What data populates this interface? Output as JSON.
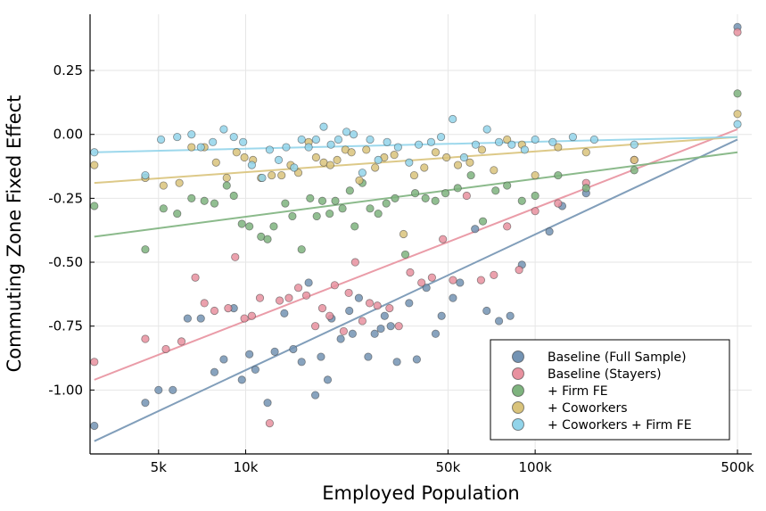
{
  "chart_data": {
    "type": "scatter",
    "title": "",
    "xlabel": "Employed Population",
    "ylabel": "Commuting Zone Fixed Effect",
    "x_scale": "log10",
    "xlim": [
      2900,
      560000
    ],
    "ylim": [
      -1.25,
      0.47
    ],
    "x_ticks": [
      {
        "value": 5000,
        "label": "5k"
      },
      {
        "value": 10000,
        "label": "10k"
      },
      {
        "value": 50000,
        "label": "50k"
      },
      {
        "value": 100000,
        "label": "100k"
      },
      {
        "value": 500000,
        "label": "500k"
      }
    ],
    "y_ticks": [
      {
        "value": 0.25,
        "label": "0.25"
      },
      {
        "value": 0.0,
        "label": "0.00"
      },
      {
        "value": -0.25,
        "label": "-0.25"
      },
      {
        "value": -0.5,
        "label": "-0.50"
      },
      {
        "value": -0.75,
        "label": "-0.75"
      },
      {
        "value": -1.0,
        "label": "-1.00"
      }
    ],
    "grid": true,
    "legend_position": "bottom-right",
    "series": [
      {
        "name": "Baseline (Full Sample)",
        "color": "#7393b3",
        "fit": [
          [
            3000,
            -1.2
          ],
          [
            500000,
            -0.02
          ]
        ],
        "points": [
          [
            3000,
            -1.14
          ],
          [
            4500,
            -1.05
          ],
          [
            5000,
            -1.0
          ],
          [
            5600,
            -1.0
          ],
          [
            6300,
            -0.72
          ],
          [
            7000,
            -0.72
          ],
          [
            7800,
            -0.93
          ],
          [
            8400,
            -0.88
          ],
          [
            9100,
            -0.68
          ],
          [
            9700,
            -0.96
          ],
          [
            10300,
            -0.86
          ],
          [
            10800,
            -0.92
          ],
          [
            11900,
            -1.05
          ],
          [
            12600,
            -0.85
          ],
          [
            13600,
            -0.7
          ],
          [
            14600,
            -0.84
          ],
          [
            15600,
            -0.89
          ],
          [
            16500,
            -0.58
          ],
          [
            17400,
            -1.02
          ],
          [
            18200,
            -0.87
          ],
          [
            19200,
            -0.96
          ],
          [
            19800,
            -0.72
          ],
          [
            21300,
            -0.8
          ],
          [
            22800,
            -0.69
          ],
          [
            23400,
            -0.78
          ],
          [
            24600,
            -0.64
          ],
          [
            26500,
            -0.87
          ],
          [
            27900,
            -0.78
          ],
          [
            29300,
            -0.76
          ],
          [
            30200,
            -0.71
          ],
          [
            31700,
            -0.75
          ],
          [
            33300,
            -0.89
          ],
          [
            36700,
            -0.66
          ],
          [
            39000,
            -0.88
          ],
          [
            42100,
            -0.6
          ],
          [
            45300,
            -0.78
          ],
          [
            47500,
            -0.71
          ],
          [
            52000,
            -0.64
          ],
          [
            55000,
            -0.58
          ],
          [
            62000,
            -0.37
          ],
          [
            68000,
            -0.69
          ],
          [
            75000,
            -0.73
          ],
          [
            82000,
            -0.71
          ],
          [
            90000,
            -0.51
          ],
          [
            112000,
            -0.38
          ],
          [
            124000,
            -0.28
          ],
          [
            150000,
            -0.23
          ],
          [
            500000,
            0.42
          ]
        ]
      },
      {
        "name": "Baseline (Stayers)",
        "color": "#e8919f",
        "fit": [
          [
            3000,
            -0.96
          ],
          [
            500000,
            0.02
          ]
        ],
        "points": [
          [
            3000,
            -0.89
          ],
          [
            4500,
            -0.8
          ],
          [
            5300,
            -0.84
          ],
          [
            6000,
            -0.81
          ],
          [
            6700,
            -0.56
          ],
          [
            7200,
            -0.66
          ],
          [
            7800,
            -0.69
          ],
          [
            8700,
            -0.68
          ],
          [
            9200,
            -0.48
          ],
          [
            9900,
            -0.72
          ],
          [
            10500,
            -0.71
          ],
          [
            11200,
            -0.64
          ],
          [
            12100,
            -1.13
          ],
          [
            13100,
            -0.65
          ],
          [
            14100,
            -0.64
          ],
          [
            15200,
            -0.6
          ],
          [
            16200,
            -0.63
          ],
          [
            17400,
            -0.75
          ],
          [
            18400,
            -0.68
          ],
          [
            19500,
            -0.71
          ],
          [
            20300,
            -0.59
          ],
          [
            21800,
            -0.77
          ],
          [
            22700,
            -0.62
          ],
          [
            23900,
            -0.5
          ],
          [
            25300,
            -0.73
          ],
          [
            26800,
            -0.66
          ],
          [
            28500,
            -0.67
          ],
          [
            31400,
            -0.68
          ],
          [
            33800,
            -0.75
          ],
          [
            37000,
            -0.54
          ],
          [
            40500,
            -0.58
          ],
          [
            44000,
            -0.56
          ],
          [
            48000,
            -0.41
          ],
          [
            52000,
            -0.57
          ],
          [
            58000,
            -0.24
          ],
          [
            65000,
            -0.57
          ],
          [
            72000,
            -0.55
          ],
          [
            80000,
            -0.36
          ],
          [
            88000,
            -0.53
          ],
          [
            100000,
            -0.3
          ],
          [
            120000,
            -0.27
          ],
          [
            150000,
            -0.19
          ],
          [
            220000,
            -0.1
          ],
          [
            500000,
            0.4
          ]
        ]
      },
      {
        "name": "+ Firm FE",
        "color": "#7eb37e",
        "fit": [
          [
            3000,
            -0.4
          ],
          [
            500000,
            -0.07
          ]
        ],
        "points": [
          [
            3000,
            -0.28
          ],
          [
            4500,
            -0.45
          ],
          [
            5200,
            -0.29
          ],
          [
            5800,
            -0.31
          ],
          [
            6500,
            -0.25
          ],
          [
            7200,
            -0.26
          ],
          [
            7800,
            -0.27
          ],
          [
            8600,
            -0.2
          ],
          [
            9100,
            -0.24
          ],
          [
            9700,
            -0.35
          ],
          [
            10300,
            -0.36
          ],
          [
            11300,
            -0.4
          ],
          [
            11900,
            -0.41
          ],
          [
            12500,
            -0.36
          ],
          [
            13700,
            -0.27
          ],
          [
            14500,
            -0.32
          ],
          [
            15600,
            -0.45
          ],
          [
            16700,
            -0.25
          ],
          [
            17600,
            -0.32
          ],
          [
            18400,
            -0.26
          ],
          [
            19500,
            -0.31
          ],
          [
            20400,
            -0.26
          ],
          [
            21600,
            -0.29
          ],
          [
            22900,
            -0.22
          ],
          [
            23800,
            -0.36
          ],
          [
            25300,
            -0.19
          ],
          [
            26900,
            -0.29
          ],
          [
            28700,
            -0.31
          ],
          [
            30600,
            -0.27
          ],
          [
            32800,
            -0.25
          ],
          [
            35600,
            -0.47
          ],
          [
            38500,
            -0.23
          ],
          [
            41800,
            -0.25
          ],
          [
            45200,
            -0.26
          ],
          [
            49000,
            -0.23
          ],
          [
            54000,
            -0.21
          ],
          [
            60000,
            -0.16
          ],
          [
            66000,
            -0.34
          ],
          [
            73000,
            -0.22
          ],
          [
            80000,
            -0.2
          ],
          [
            90000,
            -0.26
          ],
          [
            100000,
            -0.24
          ],
          [
            120000,
            -0.16
          ],
          [
            150000,
            -0.21
          ],
          [
            220000,
            -0.14
          ],
          [
            500000,
            0.16
          ]
        ]
      },
      {
        "name": "+ Coworkers",
        "color": "#d9c37b",
        "fit": [
          [
            3000,
            -0.19
          ],
          [
            500000,
            -0.01
          ]
        ],
        "points": [
          [
            3000,
            -0.12
          ],
          [
            4500,
            -0.17
          ],
          [
            5200,
            -0.2
          ],
          [
            5900,
            -0.19
          ],
          [
            6500,
            -0.05
          ],
          [
            7200,
            -0.05
          ],
          [
            7900,
            -0.11
          ],
          [
            8600,
            -0.17
          ],
          [
            9300,
            -0.07
          ],
          [
            9900,
            -0.09
          ],
          [
            10600,
            -0.1
          ],
          [
            11300,
            -0.17
          ],
          [
            12300,
            -0.16
          ],
          [
            13300,
            -0.16
          ],
          [
            14300,
            -0.12
          ],
          [
            15200,
            -0.15
          ],
          [
            16500,
            -0.03
          ],
          [
            17500,
            -0.09
          ],
          [
            18600,
            -0.11
          ],
          [
            19600,
            -0.12
          ],
          [
            20700,
            -0.1
          ],
          [
            22100,
            -0.06
          ],
          [
            23200,
            -0.07
          ],
          [
            24700,
            -0.18
          ],
          [
            26100,
            -0.06
          ],
          [
            28000,
            -0.13
          ],
          [
            30100,
            -0.09
          ],
          [
            32600,
            -0.08
          ],
          [
            35100,
            -0.39
          ],
          [
            38200,
            -0.16
          ],
          [
            41400,
            -0.13
          ],
          [
            45300,
            -0.07
          ],
          [
            49400,
            -0.09
          ],
          [
            54100,
            -0.12
          ],
          [
            59500,
            -0.11
          ],
          [
            65500,
            -0.06
          ],
          [
            72000,
            -0.14
          ],
          [
            80000,
            -0.02
          ],
          [
            90000,
            -0.04
          ],
          [
            100000,
            -0.16
          ],
          [
            120000,
            -0.05
          ],
          [
            150000,
            -0.07
          ],
          [
            220000,
            -0.1
          ],
          [
            500000,
            0.08
          ]
        ]
      },
      {
        "name": "+ Coworkers + Firm FE",
        "color": "#92d4ea",
        "fit": [
          [
            3000,
            -0.07
          ],
          [
            500000,
            -0.01
          ]
        ],
        "points": [
          [
            3000,
            -0.07
          ],
          [
            4500,
            -0.16
          ],
          [
            5100,
            -0.02
          ],
          [
            5800,
            -0.01
          ],
          [
            6500,
            0.0
          ],
          [
            7000,
            -0.05
          ],
          [
            7700,
            -0.03
          ],
          [
            8400,
            0.02
          ],
          [
            9100,
            -0.01
          ],
          [
            9800,
            -0.03
          ],
          [
            10500,
            -0.12
          ],
          [
            11400,
            -0.17
          ],
          [
            12100,
            -0.06
          ],
          [
            13000,
            -0.1
          ],
          [
            13800,
            -0.05
          ],
          [
            14700,
            -0.13
          ],
          [
            15600,
            -0.02
          ],
          [
            16500,
            -0.05
          ],
          [
            17500,
            -0.02
          ],
          [
            18600,
            0.03
          ],
          [
            19700,
            -0.04
          ],
          [
            20900,
            -0.02
          ],
          [
            22300,
            0.01
          ],
          [
            23600,
            0.0
          ],
          [
            25300,
            -0.15
          ],
          [
            26900,
            -0.02
          ],
          [
            28700,
            -0.1
          ],
          [
            30800,
            -0.03
          ],
          [
            33600,
            -0.05
          ],
          [
            36700,
            -0.11
          ],
          [
            39600,
            -0.04
          ],
          [
            43700,
            -0.03
          ],
          [
            47300,
            -0.01
          ],
          [
            51900,
            0.06
          ],
          [
            56800,
            -0.09
          ],
          [
            62300,
            -0.04
          ],
          [
            68200,
            0.02
          ],
          [
            75000,
            -0.03
          ],
          [
            83000,
            -0.04
          ],
          [
            92000,
            -0.06
          ],
          [
            100000,
            -0.02
          ],
          [
            115000,
            -0.03
          ],
          [
            135000,
            -0.01
          ],
          [
            160000,
            -0.02
          ],
          [
            220000,
            -0.04
          ],
          [
            500000,
            0.04
          ]
        ]
      }
    ]
  }
}
